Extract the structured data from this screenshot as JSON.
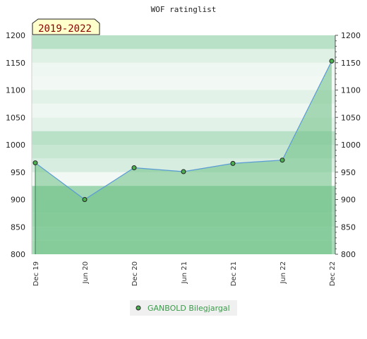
{
  "chart_data": {
    "type": "area",
    "title": "WOF ratinglist",
    "period_label": "2019-2022",
    "x_ticks": [
      "Dec 19",
      "Jun 20",
      "Dec 20",
      "Jun 21",
      "Dec 21",
      "Jun 22",
      "Dec 22"
    ],
    "series": [
      {
        "name": "GANBOLD Bilegjargal",
        "values": [
          967,
          900,
          958,
          951,
          966,
          972,
          1153
        ]
      }
    ],
    "ylim": [
      800,
      1200
    ],
    "y_ticks": [
      800,
      850,
      900,
      950,
      1000,
      1050,
      1100,
      1150,
      1200
    ],
    "y_axis_both_sides": true,
    "legend_position": "bottom-center",
    "colors": {
      "line": "#5b9bd5",
      "marker": "#4caf50",
      "area": "#6cbf84",
      "band_dark": "#9fd4b1",
      "band_light": "#e9f5ec"
    }
  }
}
